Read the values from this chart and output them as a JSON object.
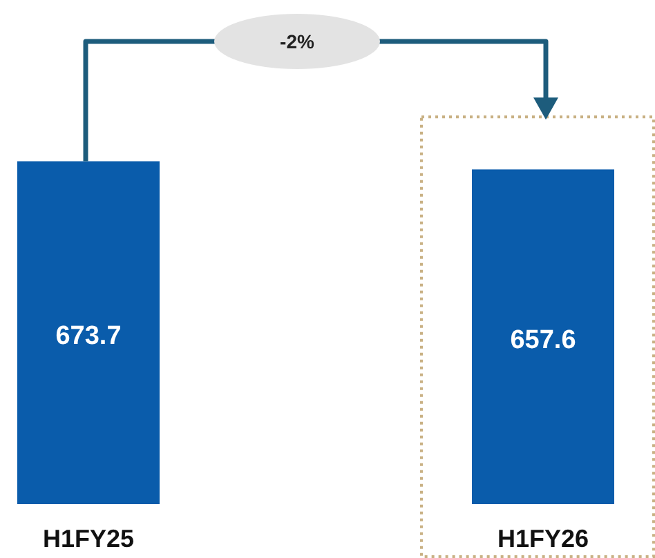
{
  "chart_data": {
    "type": "bar",
    "categories": [
      "H1FY25",
      "H1FY26"
    ],
    "values": [
      673.7,
      657.6
    ],
    "color": "#0a5cab",
    "data_labels": true,
    "annotations": [
      "-2%"
    ]
  }
}
